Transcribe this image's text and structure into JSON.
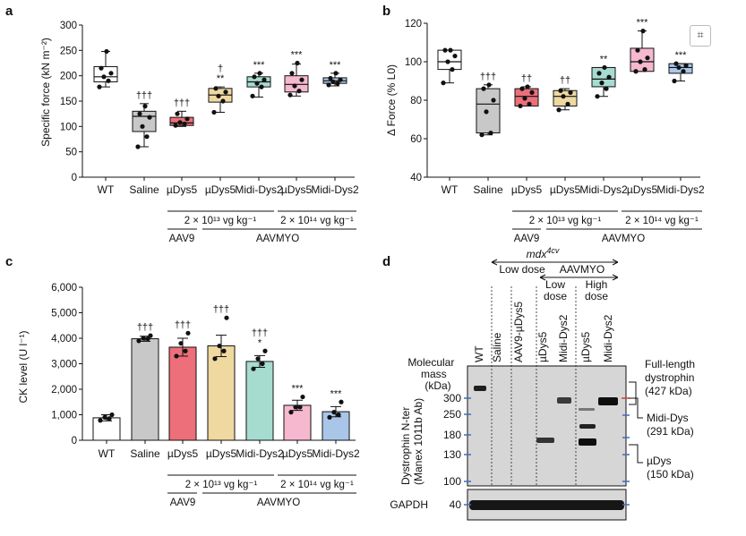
{
  "panels": {
    "a": {
      "letter": "a",
      "ylabel": "Specific force (kN m⁻²)",
      "categories": [
        "WT",
        "Saline",
        "µDys5",
        "µDys5",
        "Midi-Dys2",
        "µDys5",
        "Midi-Dys2"
      ],
      "dose_low": "2 × 10¹³ vg kg⁻¹",
      "dose_high": "2 × 10¹⁴ vg kg⁻¹",
      "vector_1": "AAV9",
      "vector_2": "AAVMYO"
    },
    "b": {
      "letter": "b",
      "ylabel": "Δ Force (% L0)",
      "categories": [
        "WT",
        "Saline",
        "µDys5",
        "µDys5",
        "Midi-Dys2",
        "µDys5",
        "Midi-Dys2"
      ],
      "dose_low": "2 × 10¹³ vg kg⁻¹",
      "dose_high": "2 × 10¹⁴ vg kg⁻¹",
      "vector_1": "AAV9",
      "vector_2": "AAVMYO"
    },
    "c": {
      "letter": "c",
      "ylabel": "CK level (U l⁻¹)",
      "categories": [
        "WT",
        "Saline",
        "µDys5",
        "µDys5",
        "Midi-Dys2",
        "µDys5",
        "Midi-Dys2"
      ],
      "dose_low": "2 × 10¹³ vg kg⁻¹",
      "dose_high": "2 × 10¹⁴ vg kg⁻¹",
      "vector_1": "AAV9",
      "vector_2": "AAVMYO"
    },
    "d": {
      "letter": "d",
      "mdx": "mdx",
      "mdx_sup": "4cv",
      "low_dose_top": "Low dose",
      "aavmyo": "AAVMYO",
      "low_dose": "Low dose",
      "high_dose": "High dose",
      "lanes": [
        "WT",
        "Saline",
        "AAV9-µDys5",
        "µDys5",
        "Midi-Dys2",
        "µDys5",
        "Midi-Dys2"
      ],
      "mass_title": [
        "Molecular",
        "mass",
        "(kDa)"
      ],
      "markers": [
        "300",
        "250",
        "180",
        "130",
        "100"
      ],
      "gapdh_marker": "40",
      "gapdh": "GAPDH",
      "side_label": [
        "Dystrophin N-ter",
        "(Manex 1011b Ab)"
      ],
      "full_length": [
        "Full-length",
        "dystrophin",
        "(427 kDa)"
      ],
      "midi": [
        "Midi-Dys",
        "(291 kDa)"
      ],
      "udys": [
        "µDys",
        "(150 kDa)"
      ]
    }
  },
  "chart_data": [
    {
      "panel": "a",
      "type": "box",
      "ylabel": "Specific force (kN m⁻²)",
      "ylim": [
        0,
        300
      ],
      "yticks": [
        0,
        50,
        100,
        150,
        200,
        250,
        300
      ],
      "categories": [
        "WT",
        "Saline",
        "µDys5",
        "µDys5",
        "Midi-Dys2",
        "µDys5",
        "Midi-Dys2"
      ],
      "groups": [
        "WT",
        "Saline",
        "AAV9 2×10¹³",
        "AAVMYO 2×10¹³",
        "AAVMYO 2×10¹³",
        "AAVMYO 2×10¹⁴",
        "AAVMYO 2×10¹⁴"
      ],
      "colors": [
        "#ffffff",
        "#c8c8c8",
        "#ec6f79",
        "#efd9a0",
        "#a6dccf",
        "#f6b8cf",
        "#a9c6e8"
      ],
      "boxes": [
        {
          "min": 178,
          "q1": 188,
          "median": 198,
          "q3": 218,
          "max": 248
        },
        {
          "min": 60,
          "q1": 90,
          "median": 120,
          "q3": 130,
          "max": 145
        },
        {
          "min": 100,
          "q1": 102,
          "median": 107,
          "q3": 118,
          "max": 130
        },
        {
          "min": 128,
          "q1": 148,
          "median": 162,
          "q3": 175,
          "max": 178
        },
        {
          "min": 158,
          "q1": 178,
          "median": 188,
          "q3": 198,
          "max": 205
        },
        {
          "min": 160,
          "q1": 168,
          "median": 183,
          "q3": 200,
          "max": 223
        },
        {
          "min": 180,
          "q1": 185,
          "median": 190,
          "q3": 196,
          "max": 205
        }
      ],
      "points": [
        [
          178,
          190,
          198,
          205,
          215,
          248
        ],
        [
          60,
          80,
          100,
          118,
          125,
          140
        ],
        [
          102,
          105,
          108,
          115,
          125
        ],
        [
          128,
          150,
          160,
          168,
          175
        ],
        [
          160,
          178,
          185,
          192,
          198,
          205
        ],
        [
          162,
          170,
          180,
          192,
          205,
          225
        ],
        [
          182,
          185,
          188,
          192,
          195,
          205
        ]
      ],
      "sig_top": [
        "",
        "",
        "",
        "†",
        "",
        "",
        ""
      ],
      "sig": [
        "",
        "†††",
        "†††",
        "**",
        "***",
        "***",
        "***"
      ]
    },
    {
      "panel": "b",
      "type": "box",
      "ylabel": "Δ Force (% L0)",
      "ylim": [
        40,
        120
      ],
      "yticks": [
        40,
        60,
        80,
        100,
        120
      ],
      "categories": [
        "WT",
        "Saline",
        "µDys5",
        "µDys5",
        "Midi-Dys2",
        "µDys5",
        "Midi-Dys2"
      ],
      "colors": [
        "#ffffff",
        "#c8c8c8",
        "#ec6f79",
        "#efd9a0",
        "#a6dccf",
        "#f6b8cf",
        "#a9c6e8"
      ],
      "boxes": [
        {
          "min": 89,
          "q1": 96,
          "median": 100,
          "q3": 106,
          "max": 106
        },
        {
          "min": 62,
          "q1": 63,
          "median": 78,
          "q3": 86,
          "max": 88
        },
        {
          "min": 77,
          "q1": 77,
          "median": 82,
          "q3": 86,
          "max": 87
        },
        {
          "min": 75,
          "q1": 77,
          "median": 82,
          "q3": 85,
          "max": 86
        },
        {
          "min": 82,
          "q1": 87,
          "median": 91,
          "q3": 97,
          "max": 97
        },
        {
          "min": 95,
          "q1": 95,
          "median": 100,
          "q3": 107,
          "max": 116
        },
        {
          "min": 90,
          "q1": 94,
          "median": 97,
          "q3": 99,
          "max": 99
        }
      ],
      "points": [
        [
          89,
          96,
          100,
          103,
          106,
          106
        ],
        [
          62,
          63,
          74,
          80,
          86,
          88
        ],
        [
          77,
          78,
          81,
          84,
          86,
          87
        ],
        [
          75,
          78,
          82,
          84,
          85
        ],
        [
          82,
          86,
          89,
          92,
          94,
          97
        ],
        [
          95,
          96,
          100,
          102,
          106,
          116
        ],
        [
          90,
          95,
          97,
          98,
          99
        ]
      ],
      "sig": [
        "",
        "†††",
        "††",
        "††",
        "**",
        "***",
        "***"
      ]
    },
    {
      "panel": "c",
      "type": "bar",
      "ylabel": "CK level (U l⁻¹)",
      "ylim": [
        0,
        6000
      ],
      "yticks": [
        0,
        1000,
        2000,
        3000,
        4000,
        5000,
        6000
      ],
      "ytick_labels": [
        "0",
        "1,000",
        "2,000",
        "3,000",
        "4,000",
        "5,000",
        "6,000"
      ],
      "categories": [
        "WT",
        "Saline",
        "µDys5",
        "µDys5",
        "Midi-Dys2",
        "µDys5",
        "Midi-Dys2"
      ],
      "colors": [
        "#ffffff",
        "#c8c8c8",
        "#ec6f79",
        "#efd9a0",
        "#a6dccf",
        "#f6b8cf",
        "#a9c6e8"
      ],
      "values": [
        880,
        3980,
        3650,
        3700,
        3090,
        1370,
        1120
      ],
      "errors": [
        120,
        100,
        350,
        420,
        230,
        200,
        200
      ],
      "points": [
        [
          780,
          850,
          900,
          1000
        ],
        [
          3900,
          3980,
          4000,
          4100
        ],
        [
          3300,
          3500,
          3800,
          4200
        ],
        [
          3200,
          3500,
          3700,
          4800
        ],
        [
          2800,
          3000,
          3200,
          3500
        ],
        [
          1100,
          1300,
          1300,
          1700
        ],
        [
          900,
          1000,
          1100,
          1500
        ]
      ],
      "sig_top": [
        "",
        "",
        "",
        "",
        "†††",
        "",
        ""
      ],
      "sig": [
        "",
        "†††",
        "†††",
        "†††",
        "*",
        "***",
        "***"
      ]
    }
  ]
}
